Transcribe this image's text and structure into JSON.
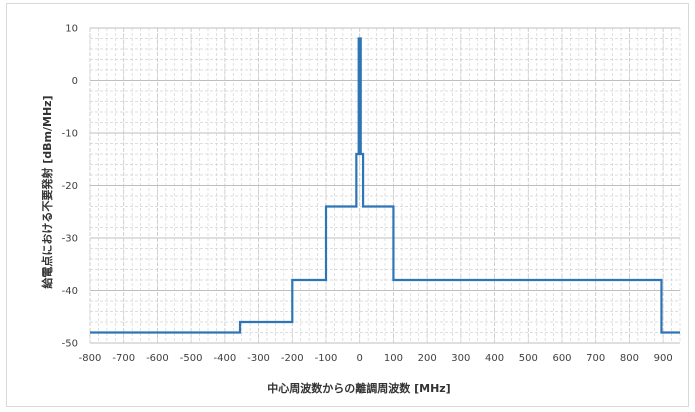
{
  "chart_data": {
    "type": "line",
    "title": "",
    "xlabel": "中心周波数からの離調周波数 [MHz]",
    "ylabel": "給電点における不要発射 [dBm/MHz]",
    "xlim": [
      -800,
      950
    ],
    "ylim": [
      -50,
      10
    ],
    "x_ticks": [
      -800,
      -700,
      -600,
      -500,
      -400,
      -300,
      -200,
      -100,
      0,
      100,
      200,
      300,
      400,
      500,
      600,
      700,
      800,
      900
    ],
    "y_ticks": [
      10,
      0,
      -10,
      -20,
      -30,
      -40,
      -50
    ],
    "grid": true,
    "legend": "none",
    "series": [
      {
        "color": "#2e75b6",
        "points": [
          [
            -800,
            -48
          ],
          [
            -355,
            -48
          ],
          [
            -355,
            -46
          ],
          [
            -200,
            -46
          ],
          [
            -200,
            -38
          ],
          [
            -100,
            -38
          ],
          [
            -100,
            -24
          ],
          [
            -10,
            -24
          ],
          [
            -10,
            -14
          ],
          [
            -3,
            -14
          ],
          [
            -3,
            8
          ],
          [
            3,
            8
          ],
          [
            3,
            -14
          ],
          [
            10,
            -14
          ],
          [
            10,
            -24
          ],
          [
            100,
            -24
          ],
          [
            100,
            -38
          ],
          [
            895,
            -38
          ],
          [
            895,
            -48
          ],
          [
            950,
            -48
          ]
        ]
      }
    ]
  }
}
